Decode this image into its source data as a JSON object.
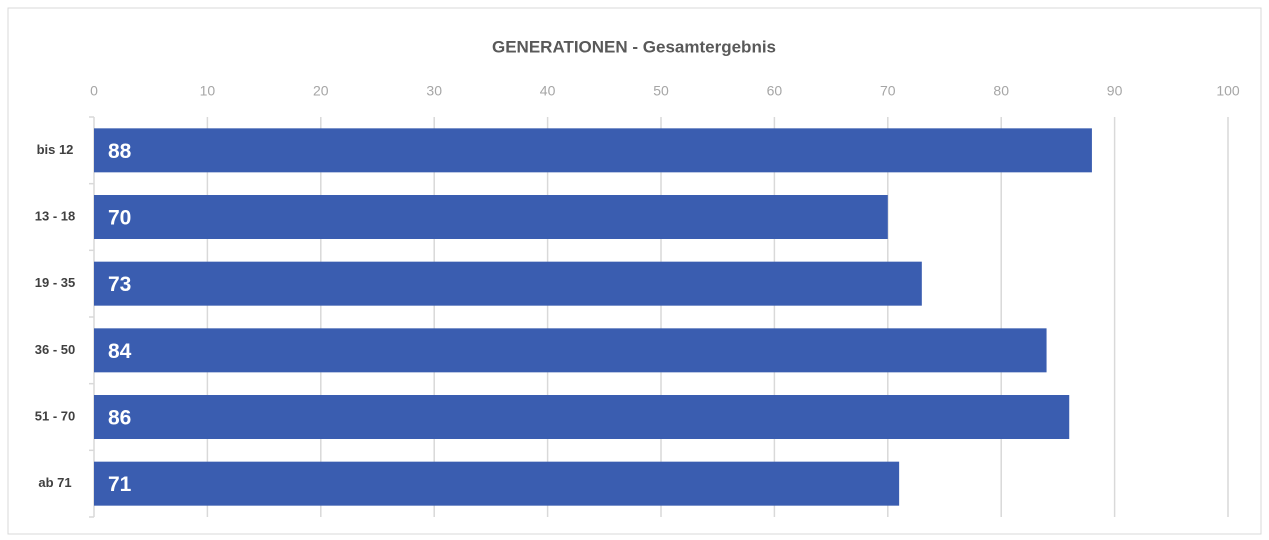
{
  "chart_data": {
    "type": "bar",
    "orientation": "horizontal",
    "title": "GENERATIONEN - Gesamtergebnis",
    "categories": [
      "bis 12",
      "13 - 18",
      "19 - 35",
      "36 - 50",
      "51 - 70",
      "ab 71"
    ],
    "values": [
      88,
      70,
      73,
      84,
      86,
      71
    ],
    "color": "#3a5db0",
    "xlim": [
      0,
      100
    ],
    "xticks": [
      0,
      10,
      20,
      30,
      40,
      50,
      60,
      70,
      80,
      90,
      100
    ],
    "grid": true,
    "data_labels": true
  }
}
